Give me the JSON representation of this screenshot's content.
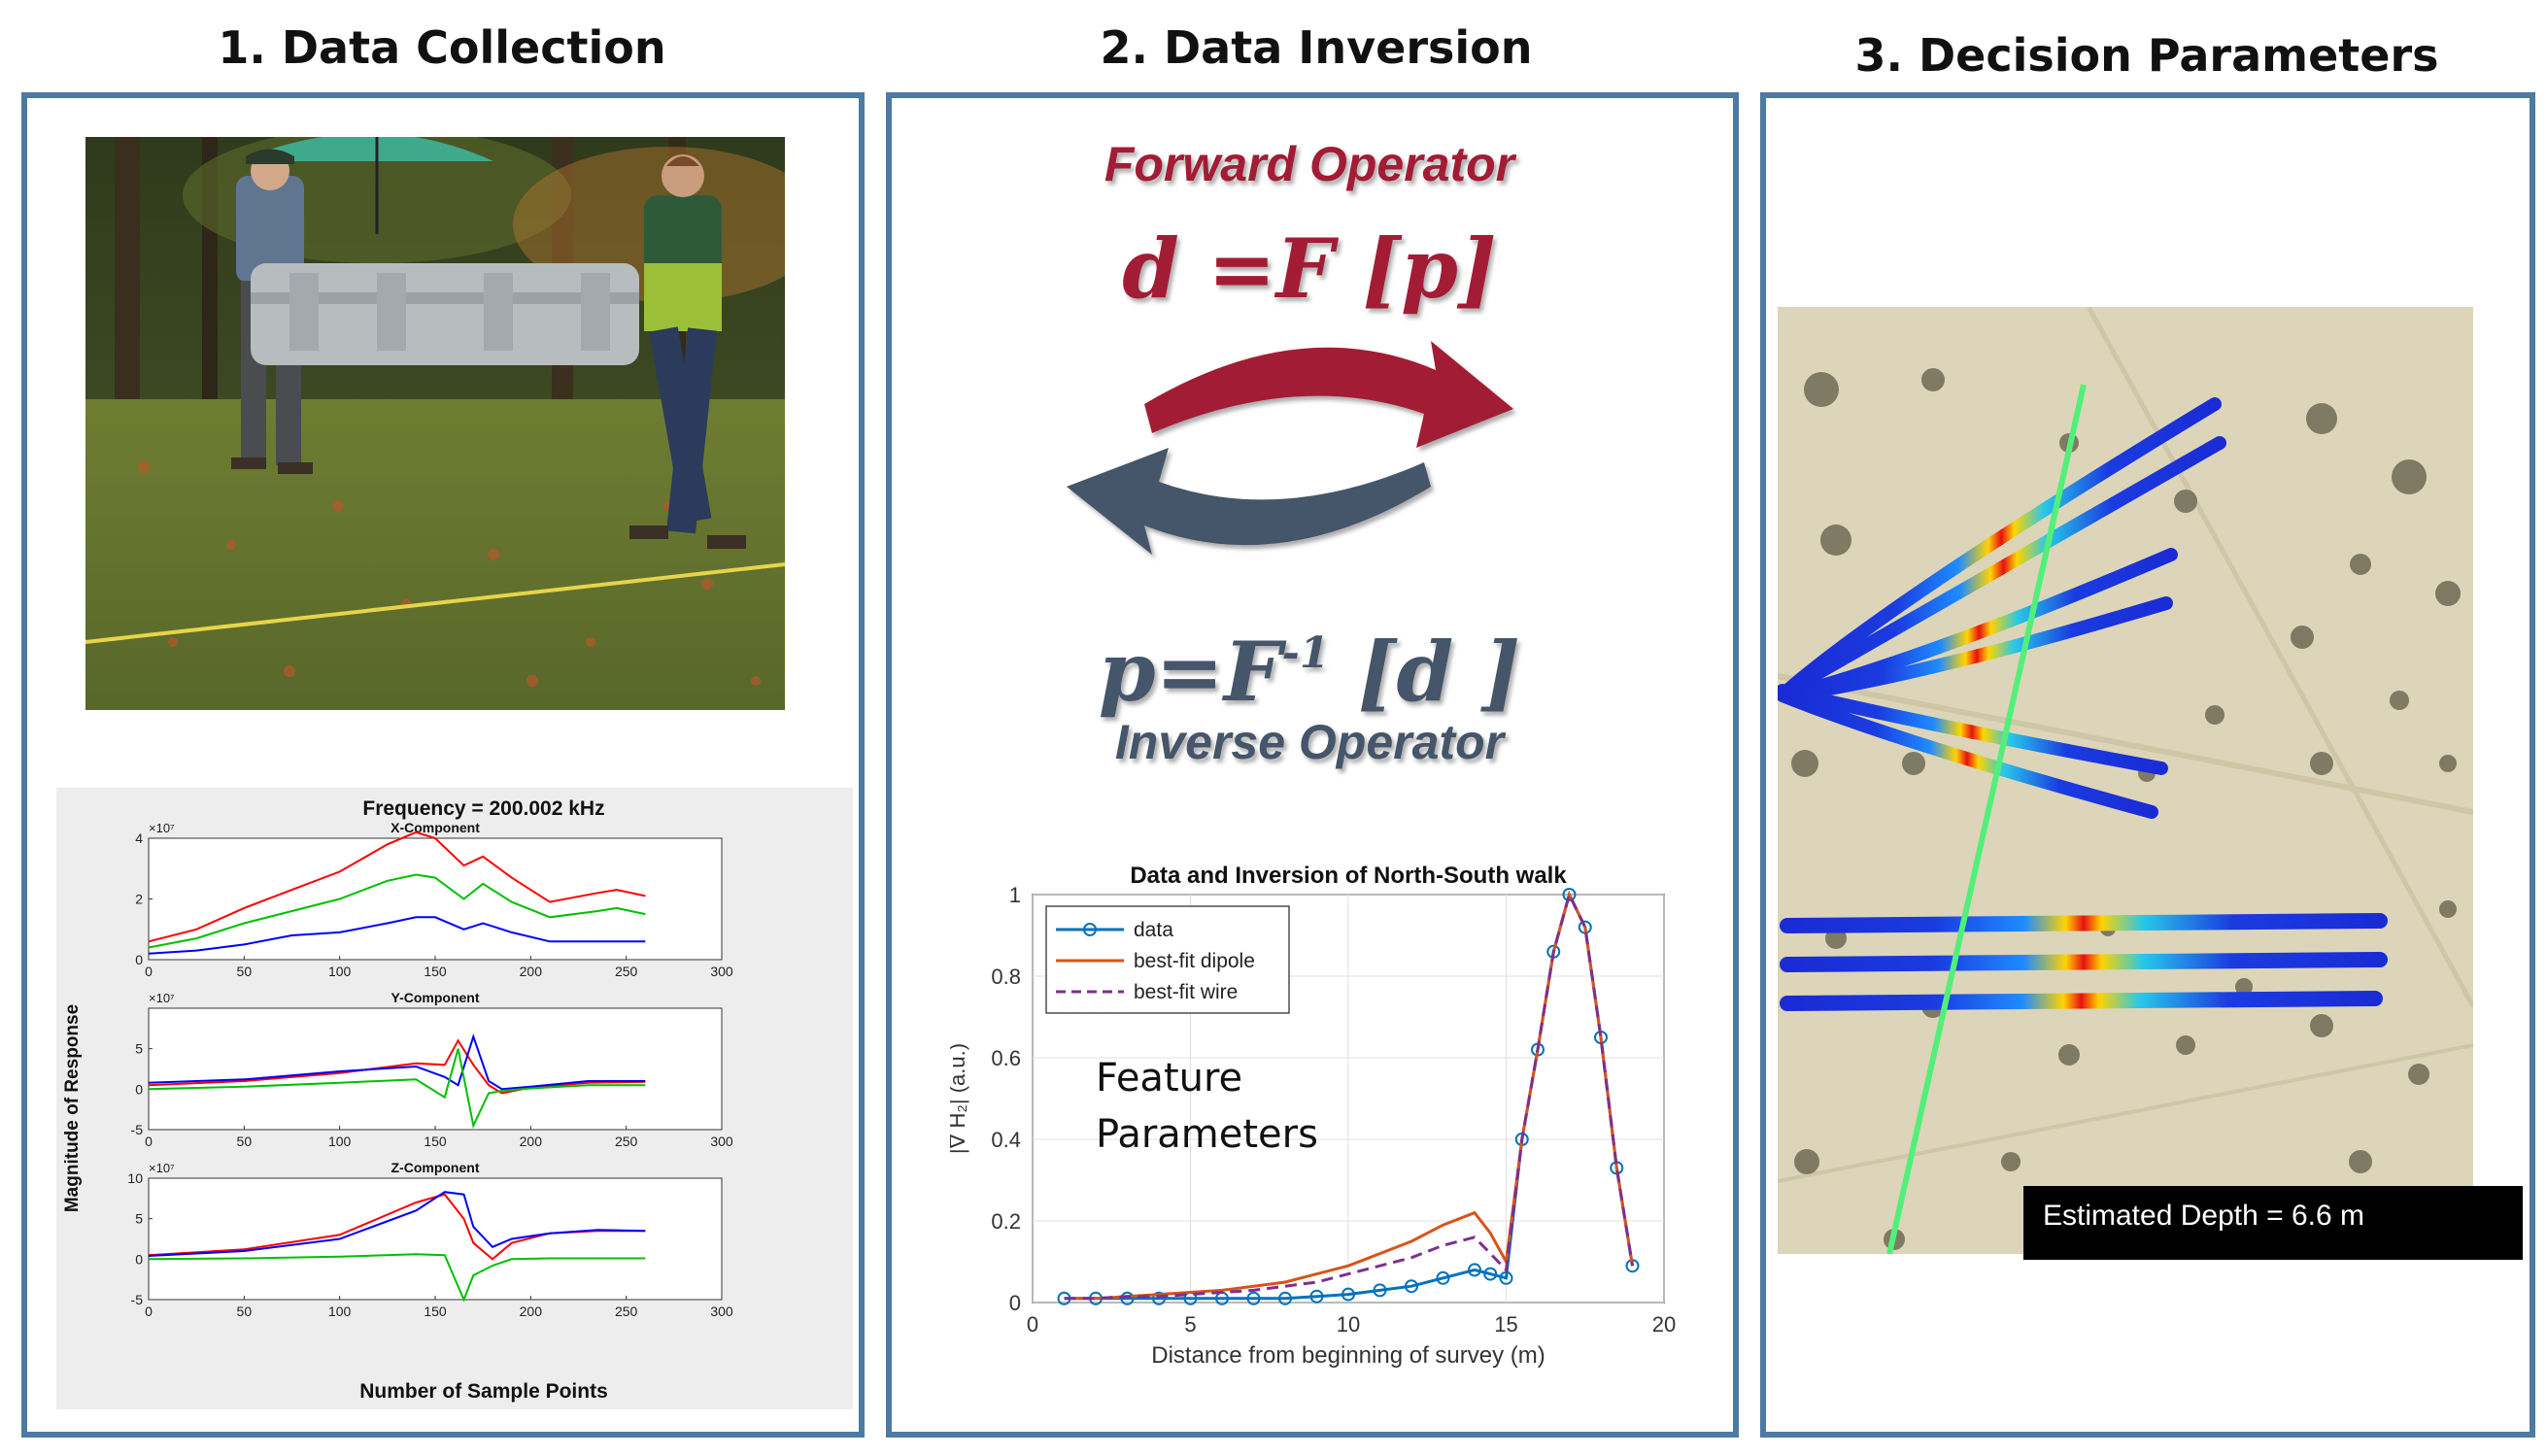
{
  "panels": [
    {
      "title": "1. Data Collection"
    },
    {
      "title": "2. Data Inversion"
    },
    {
      "title": "3. Decision Parameters"
    }
  ],
  "collection": {
    "photo": "field-team-carrying-sensor-photo",
    "chart_title": "Frequency = 200.002 kHz",
    "ylabel": "Magnitude of Response",
    "xlabel": "Number of Sample Points"
  },
  "inversion": {
    "forward_label": "Forward Operator",
    "forward_eq": "d =F [p]",
    "inverse_eq_left": "p=F",
    "inverse_eq_sup": "-1",
    "inverse_eq_right": " [d ]",
    "inverse_label": "Inverse Operator",
    "feature_line1": "Feature",
    "feature_line2": "Parameters",
    "forward_arrow_color": "#a31f34",
    "inverse_arrow_color": "#44546a"
  },
  "decision": {
    "map": "aerial-survey-map",
    "depth_text": "Estimated Depth = 6.6 m"
  },
  "chart_data": [
    {
      "type": "line",
      "title": "X-Component",
      "exponent": "×10⁷",
      "xlim": [
        0,
        300
      ],
      "ylim": [
        0,
        4
      ],
      "xticks": [
        "0",
        "50",
        "100",
        "150",
        "200",
        "250",
        "300"
      ],
      "yticks": [
        "0",
        "2",
        "4"
      ],
      "x": [
        0,
        25,
        50,
        75,
        100,
        125,
        140,
        150,
        165,
        175,
        190,
        210,
        235,
        245,
        260
      ],
      "series": [
        {
          "color": "#ff0000",
          "values": [
            0.6,
            1.0,
            1.7,
            2.3,
            2.9,
            3.8,
            4.2,
            4.0,
            3.1,
            3.4,
            2.7,
            1.9,
            2.2,
            2.3,
            2.1
          ]
        },
        {
          "color": "#00c000",
          "values": [
            0.4,
            0.7,
            1.2,
            1.6,
            2.0,
            2.6,
            2.8,
            2.7,
            2.0,
            2.5,
            1.9,
            1.4,
            1.6,
            1.7,
            1.5
          ]
        },
        {
          "color": "#0000ff",
          "values": [
            0.2,
            0.3,
            0.5,
            0.8,
            0.9,
            1.2,
            1.4,
            1.4,
            1.0,
            1.2,
            0.9,
            0.6,
            0.6,
            0.6,
            0.6
          ]
        }
      ]
    },
    {
      "type": "line",
      "title": "Y-Component",
      "exponent": "×10⁷",
      "xlim": [
        0,
        300
      ],
      "ylim": [
        -5,
        10
      ],
      "xticks": [
        "0",
        "50",
        "100",
        "150",
        "200",
        "250",
        "300"
      ],
      "yticks": [
        "-5",
        "0",
        "5"
      ],
      "x": [
        0,
        50,
        100,
        140,
        155,
        162,
        170,
        178,
        185,
        200,
        230,
        260
      ],
      "series": [
        {
          "color": "#ff0000",
          "values": [
            0.5,
            1.0,
            2.0,
            3.2,
            3.0,
            6.0,
            3.0,
            0.5,
            -0.5,
            0.2,
            0.8,
            0.9
          ]
        },
        {
          "color": "#0000ff",
          "values": [
            0.8,
            1.2,
            2.2,
            2.8,
            1.5,
            0.5,
            6.5,
            1.0,
            0.0,
            0.3,
            1.0,
            1.0
          ]
        },
        {
          "color": "#00c000",
          "values": [
            0.0,
            0.3,
            0.8,
            1.2,
            -1.0,
            5.0,
            -4.5,
            -0.5,
            -0.2,
            0.1,
            0.5,
            0.5
          ]
        }
      ]
    },
    {
      "type": "line",
      "title": "Z-Component",
      "exponent": "×10⁷",
      "xlim": [
        0,
        300
      ],
      "ylim": [
        -5,
        10
      ],
      "xticks": [
        "0",
        "50",
        "100",
        "150",
        "200",
        "250",
        "300"
      ],
      "yticks": [
        "-5",
        "0",
        "5",
        "10"
      ],
      "x": [
        0,
        50,
        100,
        140,
        155,
        165,
        170,
        180,
        190,
        210,
        235,
        260
      ],
      "series": [
        {
          "color": "#ff0000",
          "values": [
            0.5,
            1.2,
            3.0,
            7.0,
            8.0,
            5.0,
            2.0,
            0.0,
            2.0,
            3.2,
            3.5,
            3.5
          ]
        },
        {
          "color": "#0000ff",
          "values": [
            0.4,
            1.0,
            2.5,
            6.0,
            8.3,
            8.0,
            4.0,
            1.5,
            2.5,
            3.2,
            3.6,
            3.5
          ]
        },
        {
          "color": "#00c000",
          "values": [
            0.0,
            0.1,
            0.3,
            0.6,
            0.5,
            -5.0,
            -2.0,
            -0.8,
            0.0,
            0.1,
            0.1,
            0.1
          ]
        }
      ]
    },
    {
      "type": "line",
      "title": "Data and Inversion of North-South walk",
      "xlabel": "Distance from beginning of survey (m)",
      "ylabel": "|∇ H₂| (a.u.)",
      "xlim": [
        0,
        20
      ],
      "ylim": [
        0,
        1
      ],
      "xticks": [
        "0",
        "5",
        "10",
        "15",
        "20"
      ],
      "yticks": [
        "0",
        "0.2",
        "0.4",
        "0.6",
        "0.8",
        "1"
      ],
      "legend_position": "top-left",
      "x": [
        1,
        2,
        3,
        4,
        5,
        6,
        7,
        8,
        9,
        10,
        11,
        12,
        13,
        14,
        14.5,
        15,
        15.5,
        16,
        16.5,
        17,
        17.5,
        18,
        18.5,
        19
      ],
      "series": [
        {
          "name": "data",
          "color": "#0072bd",
          "marker": "circle",
          "values": [
            0.01,
            0.01,
            0.01,
            0.01,
            0.01,
            0.01,
            0.01,
            0.01,
            0.015,
            0.02,
            0.03,
            0.04,
            0.06,
            0.08,
            0.07,
            0.06,
            0.4,
            0.62,
            0.86,
            1.0,
            0.92,
            0.65,
            0.33,
            0.09
          ]
        },
        {
          "name": "best-fit dipole",
          "color": "#d95319",
          "values": [
            0.01,
            0.01,
            0.015,
            0.02,
            0.025,
            0.03,
            0.04,
            0.05,
            0.07,
            0.09,
            0.12,
            0.15,
            0.19,
            0.22,
            0.17,
            0.1,
            0.4,
            0.62,
            0.86,
            1.0,
            0.92,
            0.65,
            0.33,
            0.09
          ]
        },
        {
          "name": "best-fit wire",
          "color": "#7e2f8e",
          "dash": true,
          "values": [
            0.01,
            0.01,
            0.015,
            0.015,
            0.02,
            0.025,
            0.03,
            0.04,
            0.05,
            0.07,
            0.09,
            0.11,
            0.14,
            0.16,
            0.12,
            0.08,
            0.4,
            0.62,
            0.86,
            1.0,
            0.92,
            0.65,
            0.33,
            0.09
          ]
        }
      ]
    }
  ]
}
